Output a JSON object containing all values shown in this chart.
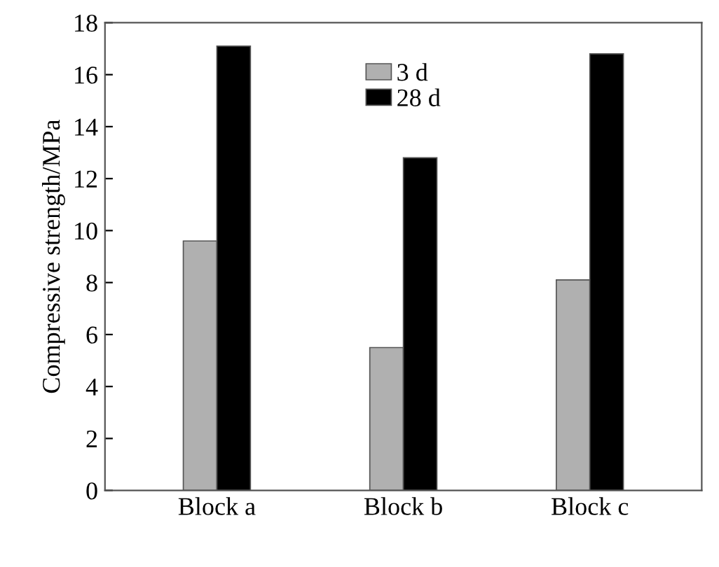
{
  "chart_data": {
    "type": "bar",
    "ylabel": "Compressive strength/MPa",
    "categories": [
      "Block a",
      "Block b",
      "Block c"
    ],
    "series": [
      {
        "name": "3 d",
        "color": "#b0b0b0",
        "values": [
          9.6,
          5.5,
          8.1
        ]
      },
      {
        "name": "28 d",
        "color": "#000000",
        "values": [
          17.1,
          12.8,
          16.8
        ]
      }
    ],
    "ylim": [
      0,
      18
    ],
    "yticks": [
      0,
      2,
      4,
      6,
      8,
      10,
      12,
      14,
      16,
      18
    ],
    "grid": false,
    "legend": "top"
  }
}
